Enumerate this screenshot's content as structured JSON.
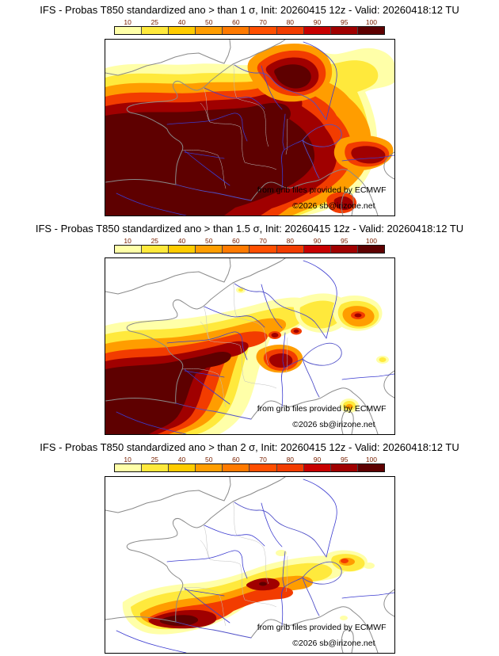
{
  "colorbar": {
    "ticks": [
      "10",
      "25",
      "40",
      "50",
      "60",
      "70",
      "80",
      "90",
      "95",
      "100"
    ],
    "colors": [
      "#ffffa8",
      "#ffe93c",
      "#ffcc00",
      "#ff9d00",
      "#ff7a00",
      "#ff4f00",
      "#f23c00",
      "#c80000",
      "#a00000",
      "#5e0000"
    ]
  },
  "panels": [
    {
      "title": "IFS - Probas T850  standardized ano > than 1 σ, Init: 20260415 12z - Valid: 20260418:12 TU",
      "attribution": "from grib files provided by ECMWF",
      "copyright": "©2026 sb@irizone.net"
    },
    {
      "title": "IFS - Probas T850  standardized ano > than 1.5 σ, Init: 20260415 12z - Valid: 20260418:12 TU",
      "attribution": "from grib files provided by ECMWF",
      "copyright": "©2026 sb@irizone.net"
    },
    {
      "title": "IFS - Probas T850  standardized ano > than 2 σ, Init: 20260415 12z - Valid: 20260418:12 TU",
      "attribution": "from grib files provided by ECMWF",
      "copyright": "©2026 sb@irizone.net"
    }
  ]
}
